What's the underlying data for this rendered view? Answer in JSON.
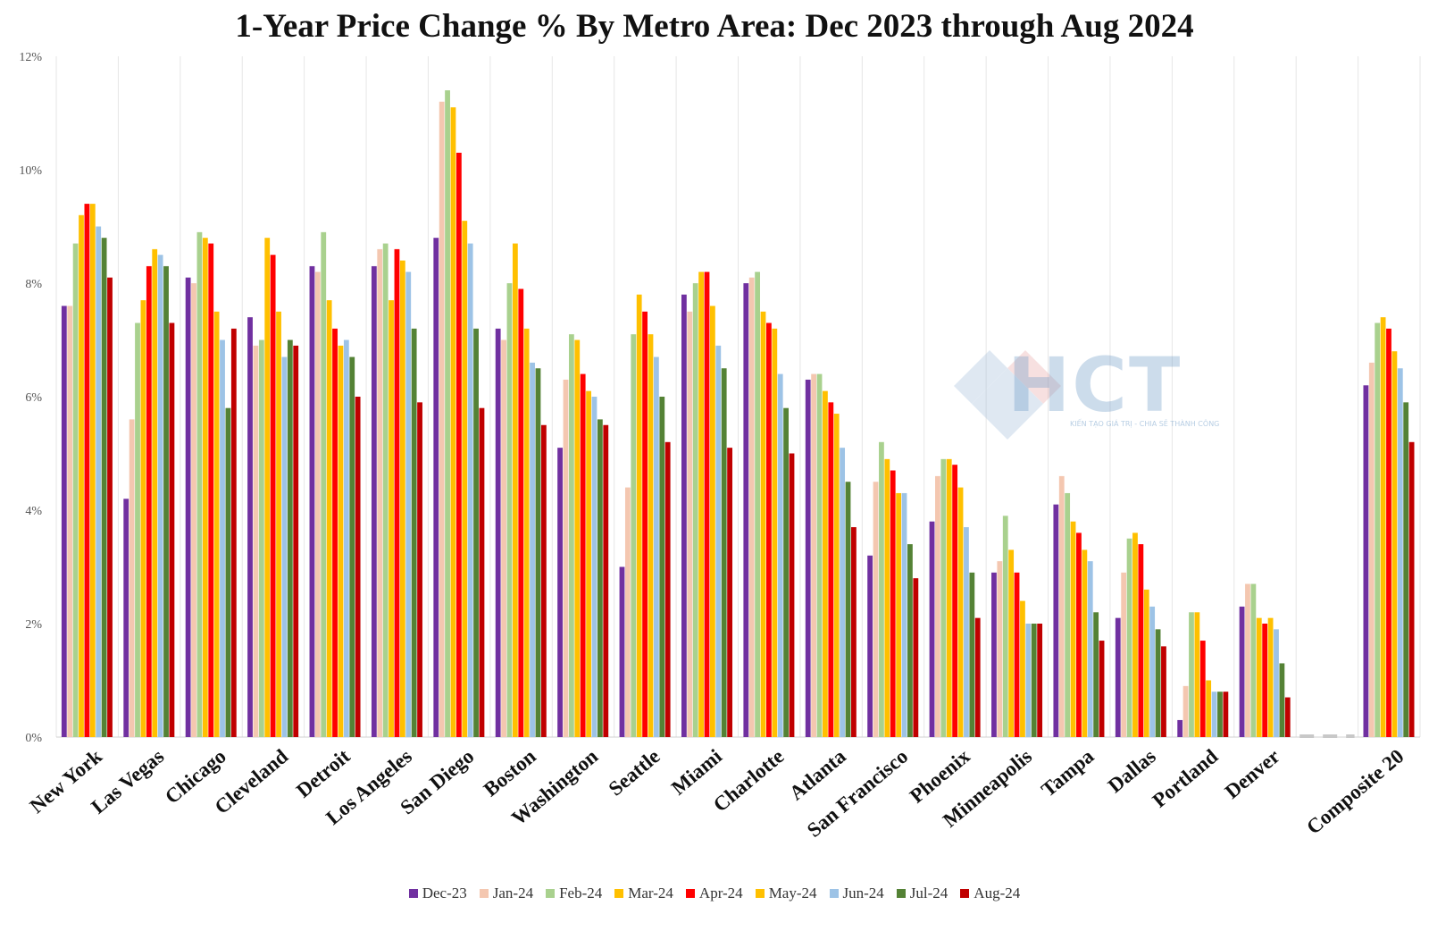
{
  "chart_data": {
    "type": "bar",
    "title": "1-Year Price Change % By Metro Area: Dec  2023 through Aug 2024",
    "xlabel": "",
    "ylabel": "",
    "ylim": [
      0,
      12
    ],
    "y_ticks": [
      "0%",
      "2%",
      "4%",
      "6%",
      "8%",
      "10%",
      "12%"
    ],
    "grid": "vertical",
    "legend_position": "bottom",
    "categories": [
      "New York",
      "Las Vegas",
      "Chicago",
      "Cleveland",
      "Detroit",
      "Los Angeles",
      "San Diego",
      "Boston",
      "Washington",
      "Seattle",
      "Miami",
      "Charlotte",
      "Atlanta",
      "San Francisco",
      "Phoenix",
      "Minneapolis",
      "Tampa",
      "Dallas",
      "Portland",
      "Denver",
      "",
      "Composite 20"
    ],
    "series": [
      {
        "name": "Dec-23",
        "color": "#7030a0",
        "values": [
          7.6,
          4.2,
          8.1,
          7.4,
          8.3,
          8.3,
          8.8,
          7.2,
          5.1,
          3.0,
          7.8,
          8.0,
          6.3,
          3.2,
          3.8,
          2.9,
          4.1,
          2.1,
          0.3,
          2.3,
          0.0,
          6.2
        ]
      },
      {
        "name": "Jan-24",
        "color": "#f4c7b0",
        "values": [
          7.6,
          5.6,
          8.0,
          6.9,
          8.2,
          8.6,
          11.2,
          7.0,
          6.3,
          4.4,
          7.5,
          8.1,
          6.4,
          4.5,
          4.6,
          3.1,
          4.6,
          2.9,
          0.9,
          2.7,
          0.0,
          6.6
        ]
      },
      {
        "name": "Feb-24",
        "color": "#a9d18e",
        "values": [
          8.7,
          7.3,
          8.9,
          7.0,
          8.9,
          8.7,
          11.4,
          8.0,
          7.1,
          7.1,
          8.0,
          8.2,
          6.4,
          5.2,
          4.9,
          3.9,
          4.3,
          3.5,
          2.2,
          2.7,
          0.0,
          7.3
        ]
      },
      {
        "name": "Mar-24",
        "color": "#ffc000",
        "values": [
          9.2,
          7.7,
          8.8,
          8.8,
          7.7,
          7.7,
          11.1,
          8.7,
          7.0,
          7.8,
          8.2,
          7.5,
          6.1,
          4.9,
          4.9,
          3.3,
          3.8,
          3.6,
          2.2,
          2.1,
          0.0,
          7.4
        ]
      },
      {
        "name": "Apr-24",
        "color": "#ff0000",
        "values": [
          9.4,
          8.3,
          8.7,
          8.5,
          7.2,
          8.6,
          10.3,
          7.9,
          6.4,
          7.5,
          8.2,
          7.3,
          5.9,
          4.7,
          4.8,
          2.9,
          3.6,
          3.4,
          1.7,
          2.0,
          0.0,
          7.2
        ]
      },
      {
        "name": "May-24",
        "color": "#ffc000",
        "values": [
          9.4,
          8.6,
          7.5,
          7.5,
          6.9,
          8.4,
          9.1,
          7.2,
          6.1,
          7.1,
          7.6,
          7.2,
          5.7,
          4.3,
          4.4,
          2.4,
          3.3,
          2.6,
          1.0,
          2.1,
          0.0,
          6.8
        ]
      },
      {
        "name": "Jun-24",
        "color": "#9dc3e6",
        "values": [
          9.0,
          8.5,
          7.0,
          6.7,
          7.0,
          8.2,
          8.7,
          6.6,
          6.0,
          6.7,
          6.9,
          6.4,
          5.1,
          4.3,
          3.7,
          2.0,
          3.1,
          2.3,
          0.8,
          1.9,
          0.0,
          6.5
        ]
      },
      {
        "name": "Jul-24",
        "color": "#548235",
        "values": [
          8.8,
          8.3,
          5.8,
          7.0,
          6.7,
          7.2,
          7.2,
          6.5,
          5.6,
          6.0,
          6.5,
          5.8,
          4.5,
          3.4,
          2.9,
          2.0,
          2.2,
          1.9,
          0.8,
          1.3,
          0.0,
          5.9
        ]
      },
      {
        "name": "Aug-24",
        "color": "#c00000",
        "values": [
          8.1,
          7.3,
          7.2,
          6.9,
          6.0,
          5.9,
          5.8,
          5.5,
          5.5,
          5.2,
          5.1,
          5.0,
          3.7,
          2.8,
          2.1,
          2.0,
          1.7,
          1.6,
          0.8,
          0.7,
          0.0,
          5.2
        ]
      }
    ]
  },
  "watermark": {
    "text": "HCT",
    "subtitle": "KIẾN TẠO GIÁ TRỊ - CHIA SẺ THÀNH CÔNG"
  }
}
